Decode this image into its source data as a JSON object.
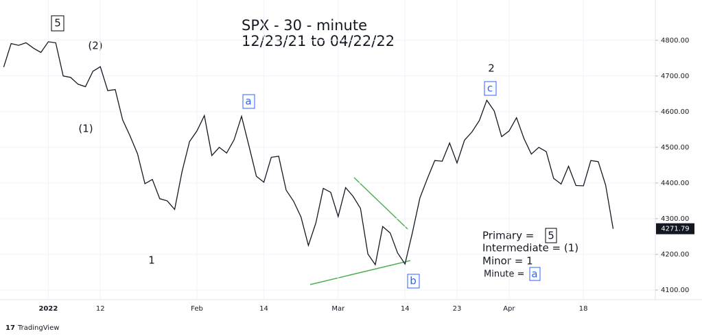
{
  "chart_data": {
    "type": "line",
    "title": "SPX - 30 - minute",
    "subtitle": "12/23/21 to 04/22/22",
    "categories": [
      null,
      null,
      null,
      null,
      null,
      null,
      "2022",
      null,
      null,
      null,
      null,
      null,
      null,
      "12",
      null,
      null,
      null,
      null,
      null,
      null,
      null,
      null,
      null,
      null,
      null,
      null,
      "Feb",
      null,
      null,
      null,
      null,
      null,
      null,
      null,
      null,
      "14",
      null,
      null,
      null,
      null,
      null,
      null,
      null,
      null,
      null,
      "Mar",
      null,
      null,
      null,
      null,
      null,
      null,
      null,
      null,
      "14",
      null,
      null,
      null,
      null,
      null,
      null,
      "23",
      null,
      null,
      null,
      null,
      null,
      null,
      "Apr",
      null,
      null,
      null,
      null,
      null,
      null,
      null,
      null,
      null,
      "18",
      null,
      null,
      null,
      null
    ],
    "values": [
      4725,
      4791,
      4786,
      4793,
      4778,
      4766,
      4796,
      4793,
      4700,
      4696,
      4677,
      4670,
      4713,
      4726,
      4659,
      4662,
      4577,
      4532,
      4482,
      4398,
      4410,
      4356,
      4350,
      4326,
      4432,
      4516,
      4546,
      4589,
      4477,
      4500,
      4484,
      4521,
      4587,
      4504,
      4419,
      4402,
      4472,
      4475,
      4380,
      4349,
      4305,
      4225,
      4288,
      4385,
      4374,
      4306,
      4387,
      4363,
      4329,
      4201,
      4171,
      4278,
      4260,
      4204,
      4173,
      4262,
      4358,
      4412,
      4463,
      4461,
      4512,
      4456,
      4520,
      4543,
      4575,
      4632,
      4602,
      4530,
      4546,
      4583,
      4525,
      4481,
      4500,
      4488,
      4413,
      4397,
      4447,
      4393,
      4392,
      4463,
      4460,
      4394,
      4271.79
    ],
    "color": "#131722",
    "ylim": [
      4073,
      4913
    ],
    "yticks": [
      {
        "value": 4100,
        "label": "4100.00"
      },
      {
        "value": 4200,
        "label": "4200.00"
      },
      {
        "value": 4300,
        "label": "4300.00"
      },
      {
        "value": 4400,
        "label": "4400.00"
      },
      {
        "value": 4500,
        "label": "4500.00"
      },
      {
        "value": 4600,
        "label": "4600.00"
      },
      {
        "value": 4700,
        "label": "4700.00"
      },
      {
        "value": 4800,
        "label": "4800.00"
      }
    ],
    "annotations": {
      "primary_top": "5",
      "intermediate_2": "(2)",
      "intermediate_1": "(1)",
      "minor_1": "1",
      "minute_a": "a",
      "minor_2": "2",
      "minute_c": "c",
      "minute_b": "b"
    },
    "key": {
      "primary": "Primary  =",
      "primary_value": "5",
      "intermediate": "Intermediate = (1)",
      "minor": "Minor = 1",
      "minute": "Minute =",
      "minute_value": "a"
    },
    "watermark": "TradingView"
  }
}
